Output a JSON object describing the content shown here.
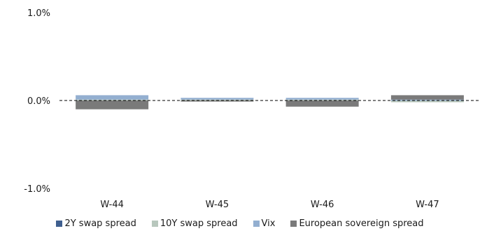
{
  "chart_data": {
    "type": "bar",
    "stacked": true,
    "categories": [
      "W-44",
      "W-45",
      "W-46",
      "W-47"
    ],
    "ylim": [
      -1.0,
      1.0
    ],
    "yticks": [
      1.0,
      0.0,
      -1.0
    ],
    "ytick_labels": [
      "1.0%",
      "0.0%",
      "-1.0%"
    ],
    "zero_line": "dashed",
    "grid": false,
    "legend_position": "bottom",
    "series": [
      {
        "name": "2Y swap spread",
        "color": "#3f5f8f",
        "values": [
          0.0,
          0.0,
          0.0,
          0.0
        ]
      },
      {
        "name": "10Y swap spread",
        "color": "#b8c7bd",
        "values": [
          0.01,
          0.01,
          0.01,
          -0.02
        ]
      },
      {
        "name": "Vix",
        "color": "#93afd0",
        "values": [
          0.05,
          0.02,
          0.02,
          0.01
        ]
      },
      {
        "name": "European sovereign spread",
        "color": "#7a7a7a",
        "values": [
          -0.1,
          -0.01,
          -0.07,
          0.05
        ]
      }
    ]
  }
}
